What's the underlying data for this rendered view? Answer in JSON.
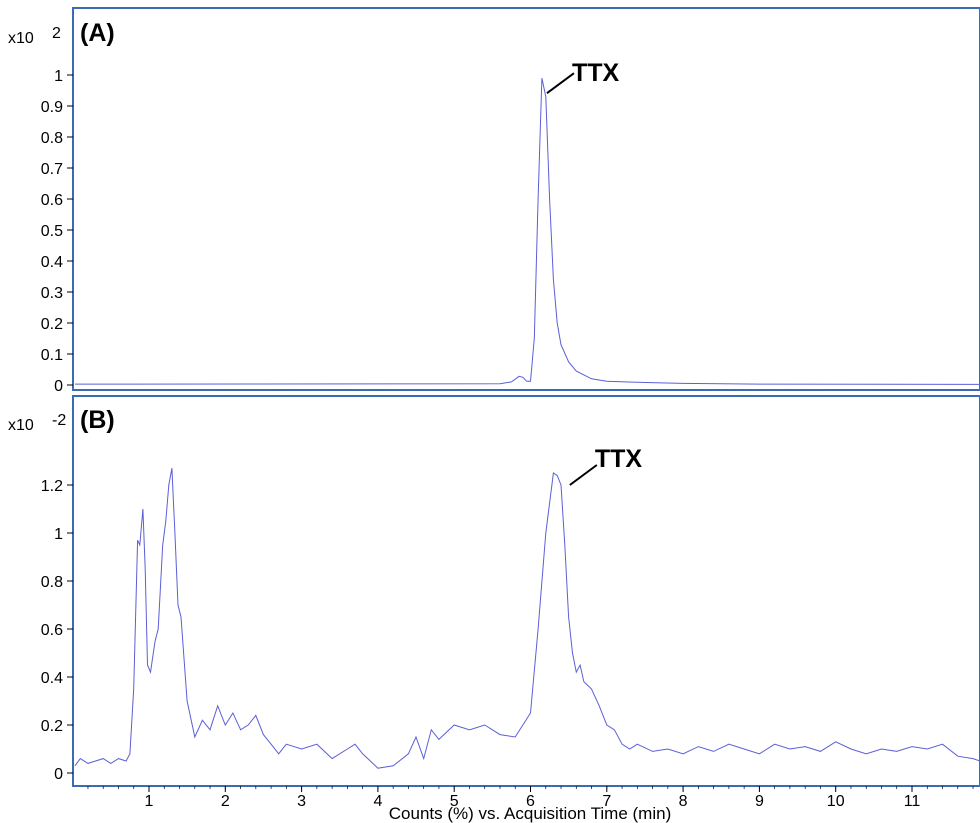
{
  "chart_data": [
    {
      "type": "line",
      "panel_label": "(A)",
      "multiplier": "x10",
      "multiplier_exp": "2",
      "ylim": [
        0,
        1.0
      ],
      "yticks": [
        "0",
        "0.1",
        "0.2",
        "0.3",
        "0.4",
        "0.5",
        "0.6",
        "0.7",
        "0.8",
        "0.9",
        "1"
      ],
      "xlim": [
        0.0,
        11.9
      ],
      "series": [
        {
          "color": "#5b5fd6",
          "x": [
            0.0,
            5.6,
            5.75,
            5.85,
            5.9,
            5.95,
            6.0,
            6.05,
            6.1,
            6.15,
            6.2,
            6.25,
            6.3,
            6.35,
            6.4,
            6.5,
            6.6,
            6.8,
            7.0,
            7.5,
            8.0,
            9.0,
            11.9
          ],
          "y": [
            0.003,
            0.004,
            0.01,
            0.028,
            0.025,
            0.012,
            0.012,
            0.15,
            0.6,
            0.99,
            0.93,
            0.6,
            0.34,
            0.2,
            0.13,
            0.075,
            0.045,
            0.02,
            0.012,
            0.008,
            0.005,
            0.003,
            0.002
          ]
        }
      ],
      "annotations": [
        {
          "text": "TTX",
          "x": 6.15,
          "y": 0.98
        }
      ],
      "grid": false
    },
    {
      "type": "line",
      "panel_label": "(B)",
      "multiplier": "x10",
      "multiplier_exp": "-2",
      "ylim": [
        0,
        1.4
      ],
      "yticks": [
        "0",
        "0.2",
        "0.4",
        "0.6",
        "0.8",
        "1",
        "1.2"
      ],
      "xlabel": "Counts (%) vs. Acquisition Time (min)",
      "xticks": [
        "1",
        "2",
        "3",
        "4",
        "5",
        "6",
        "7",
        "8",
        "9",
        "10",
        "11"
      ],
      "xlim": [
        0.0,
        11.9
      ],
      "series": [
        {
          "color": "#5b5fd6",
          "x": [
            0.0,
            0.1,
            0.2,
            0.3,
            0.4,
            0.5,
            0.6,
            0.7,
            0.75,
            0.8,
            0.85,
            0.88,
            0.92,
            0.95,
            0.98,
            1.02,
            1.08,
            1.12,
            1.18,
            1.22,
            1.26,
            1.3,
            1.34,
            1.38,
            1.42,
            1.5,
            1.6,
            1.7,
            1.8,
            1.9,
            2.0,
            2.1,
            2.2,
            2.3,
            2.4,
            2.5,
            2.6,
            2.7,
            2.8,
            3.0,
            3.2,
            3.4,
            3.6,
            3.7,
            3.8,
            3.9,
            4.0,
            4.2,
            4.4,
            4.5,
            4.6,
            4.7,
            4.8,
            5.0,
            5.2,
            5.4,
            5.6,
            5.8,
            6.0,
            6.1,
            6.2,
            6.3,
            6.35,
            6.4,
            6.45,
            6.5,
            6.55,
            6.6,
            6.65,
            6.7,
            6.8,
            6.9,
            7.0,
            7.1,
            7.2,
            7.3,
            7.4,
            7.6,
            7.8,
            8.0,
            8.2,
            8.4,
            8.6,
            8.8,
            9.0,
            9.2,
            9.4,
            9.6,
            9.8,
            10.0,
            10.2,
            10.4,
            10.6,
            10.8,
            11.0,
            11.2,
            11.4,
            11.6,
            11.8,
            11.9
          ],
          "y": [
            0.03,
            0.06,
            0.04,
            0.05,
            0.06,
            0.04,
            0.06,
            0.05,
            0.08,
            0.35,
            0.97,
            0.95,
            1.1,
            0.85,
            0.45,
            0.42,
            0.55,
            0.6,
            0.95,
            1.05,
            1.2,
            1.27,
            1.0,
            0.7,
            0.65,
            0.3,
            0.15,
            0.22,
            0.18,
            0.28,
            0.2,
            0.25,
            0.18,
            0.2,
            0.24,
            0.16,
            0.12,
            0.08,
            0.12,
            0.1,
            0.12,
            0.06,
            0.1,
            0.12,
            0.08,
            0.05,
            0.02,
            0.03,
            0.08,
            0.15,
            0.06,
            0.18,
            0.14,
            0.2,
            0.18,
            0.2,
            0.16,
            0.15,
            0.25,
            0.6,
            1.0,
            1.25,
            1.24,
            1.2,
            0.95,
            0.65,
            0.5,
            0.42,
            0.45,
            0.38,
            0.35,
            0.28,
            0.2,
            0.18,
            0.12,
            0.1,
            0.12,
            0.09,
            0.1,
            0.08,
            0.11,
            0.09,
            0.12,
            0.1,
            0.08,
            0.12,
            0.1,
            0.11,
            0.09,
            0.13,
            0.1,
            0.08,
            0.1,
            0.09,
            0.11,
            0.1,
            0.12,
            0.07,
            0.06,
            0.05
          ]
        }
      ],
      "annotations": [
        {
          "text": "TTX",
          "x": 6.45,
          "y": 1.25
        }
      ],
      "grid": false
    }
  ]
}
